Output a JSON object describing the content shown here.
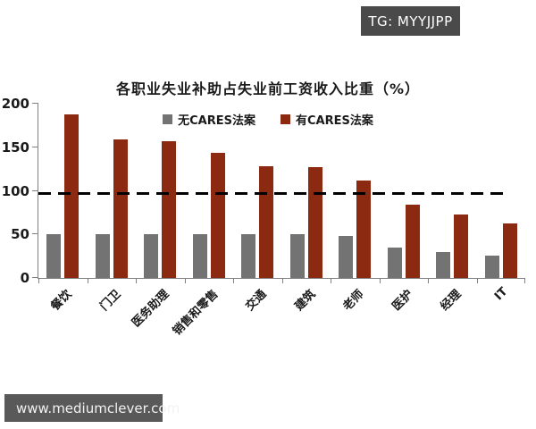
{
  "badges": {
    "tg": "TG: MYYJJPP",
    "watermark": "www.mediumclever.com"
  },
  "colors": {
    "series_no_cares": "#737373",
    "series_with_cares": "#8B2A10",
    "reference_line": "#000000",
    "badge_background": "#4a4a4a",
    "watermark_background": "#595959",
    "axis": "#808080"
  },
  "chart_data": {
    "type": "bar",
    "title": "各职业失业补助占失业前工资收入比重（%）",
    "categories": [
      "餐饮",
      "门卫",
      "医务助理",
      "销售和零售",
      "交通",
      "建筑",
      "老师",
      "医护",
      "经理",
      "IT"
    ],
    "series": [
      {
        "name": "无CARES法案",
        "color": "#737373",
        "values": [
          50,
          50,
          50,
          50,
          50,
          50,
          48,
          35,
          30,
          26
        ]
      },
      {
        "name": "有CARES法案",
        "color": "#8B2A10",
        "values": [
          188,
          159,
          157,
          144,
          128,
          127,
          112,
          84,
          73,
          63
        ]
      }
    ],
    "xlabel": "",
    "ylabel": "",
    "ylim": [
      0,
      200
    ],
    "yticks": [
      0,
      50,
      100,
      150,
      200
    ],
    "reference_line": {
      "value": 96,
      "style": "dashed",
      "color": "#000000"
    },
    "legend_position": "top-center",
    "grid": "off"
  }
}
